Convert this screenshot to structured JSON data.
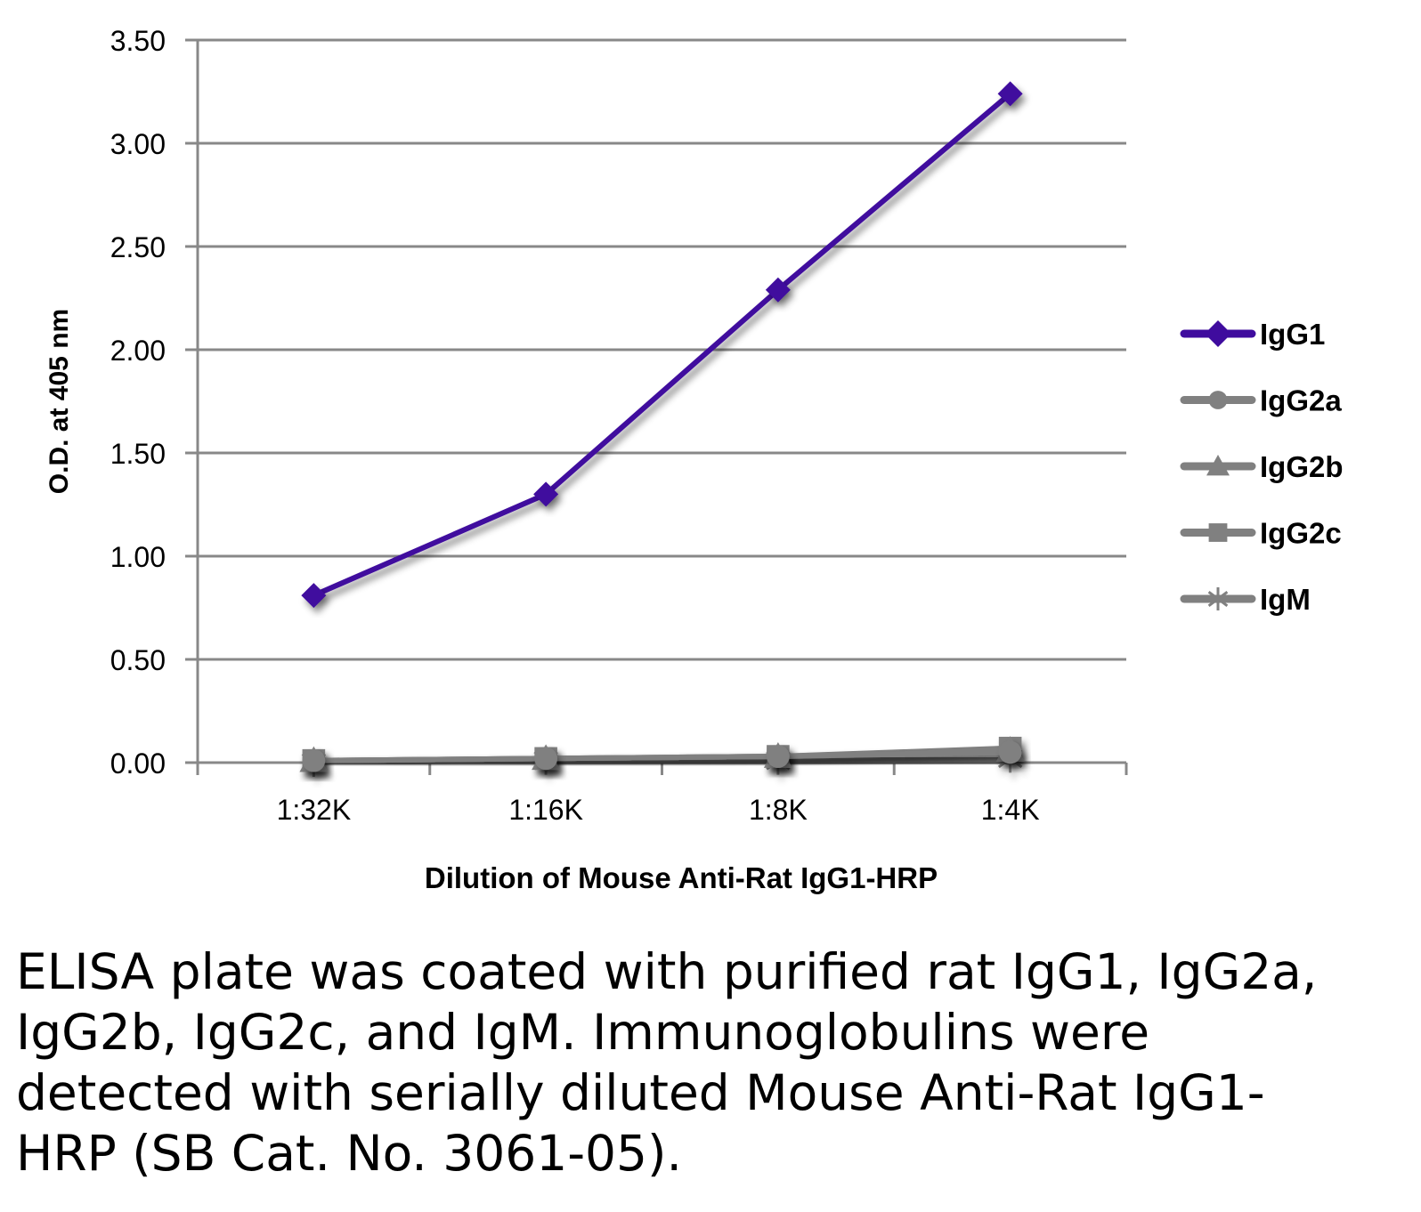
{
  "chart_data": {
    "type": "line",
    "title": "",
    "xlabel": "Dilution of Mouse Anti-Rat IgG1-HRP",
    "ylabel": "O.D. at 405 nm",
    "ylim": [
      0,
      3.5
    ],
    "yticks": [
      "0.00",
      "0.50",
      "1.00",
      "1.50",
      "2.00",
      "2.50",
      "3.00",
      "3.50"
    ],
    "ytick_values": [
      0,
      0.5,
      1,
      1.5,
      2,
      2.5,
      3,
      3.5
    ],
    "categories": [
      "1:32K",
      "1:16K",
      "1:8K",
      "1:4K"
    ],
    "grid": true,
    "legend_position": "right",
    "series": [
      {
        "name": "IgG1",
        "color": "#3f0c9e",
        "marker": "diamond",
        "values": [
          0.81,
          1.3,
          2.29,
          3.24
        ]
      },
      {
        "name": "IgG2a",
        "color": "#808080",
        "marker": "circle",
        "values": [
          0.01,
          0.02,
          0.03,
          0.05
        ]
      },
      {
        "name": "IgG2b",
        "color": "#808080",
        "marker": "triangle",
        "values": [
          0.01,
          0.02,
          0.03,
          0.06
        ]
      },
      {
        "name": "IgG2c",
        "color": "#808080",
        "marker": "square",
        "values": [
          0.01,
          0.02,
          0.03,
          0.07
        ]
      },
      {
        "name": "IgM",
        "color": "#808080",
        "marker": "star",
        "values": [
          0.0,
          0.01,
          0.01,
          0.02
        ]
      }
    ]
  },
  "caption": "ELISA plate was coated with purified rat IgG1, IgG2a, IgG2b, IgG2c, and IgM.  Immunoglobulins were detected with serially diluted Mouse Anti-Rat IgG1-HRP (SB Cat. No. 3061-05)."
}
